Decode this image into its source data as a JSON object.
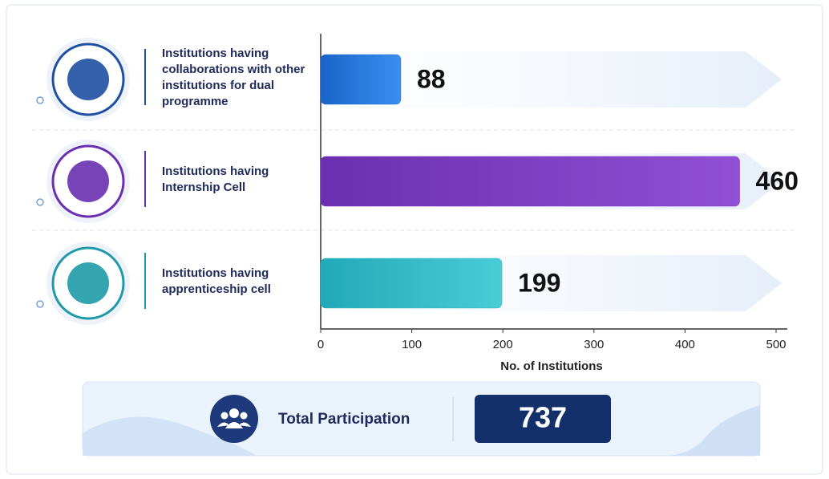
{
  "chart_data": {
    "type": "bar",
    "orientation": "horizontal",
    "categories": [
      "Institutions having collaborations with other institutions for dual programme",
      "Institutions having Internship Cell",
      "Institutions having apprenticeship cell"
    ],
    "values": [
      88,
      460,
      199
    ],
    "colors": [
      "#1f74d6",
      "#7a3bbf",
      "#2bb8c4"
    ],
    "xlim": [
      0,
      500
    ],
    "xticks": [
      0,
      100,
      200,
      300,
      400,
      500
    ],
    "x_label": "No. of Institutions",
    "total": {
      "label": "Total Participation",
      "value": 737
    }
  }
}
